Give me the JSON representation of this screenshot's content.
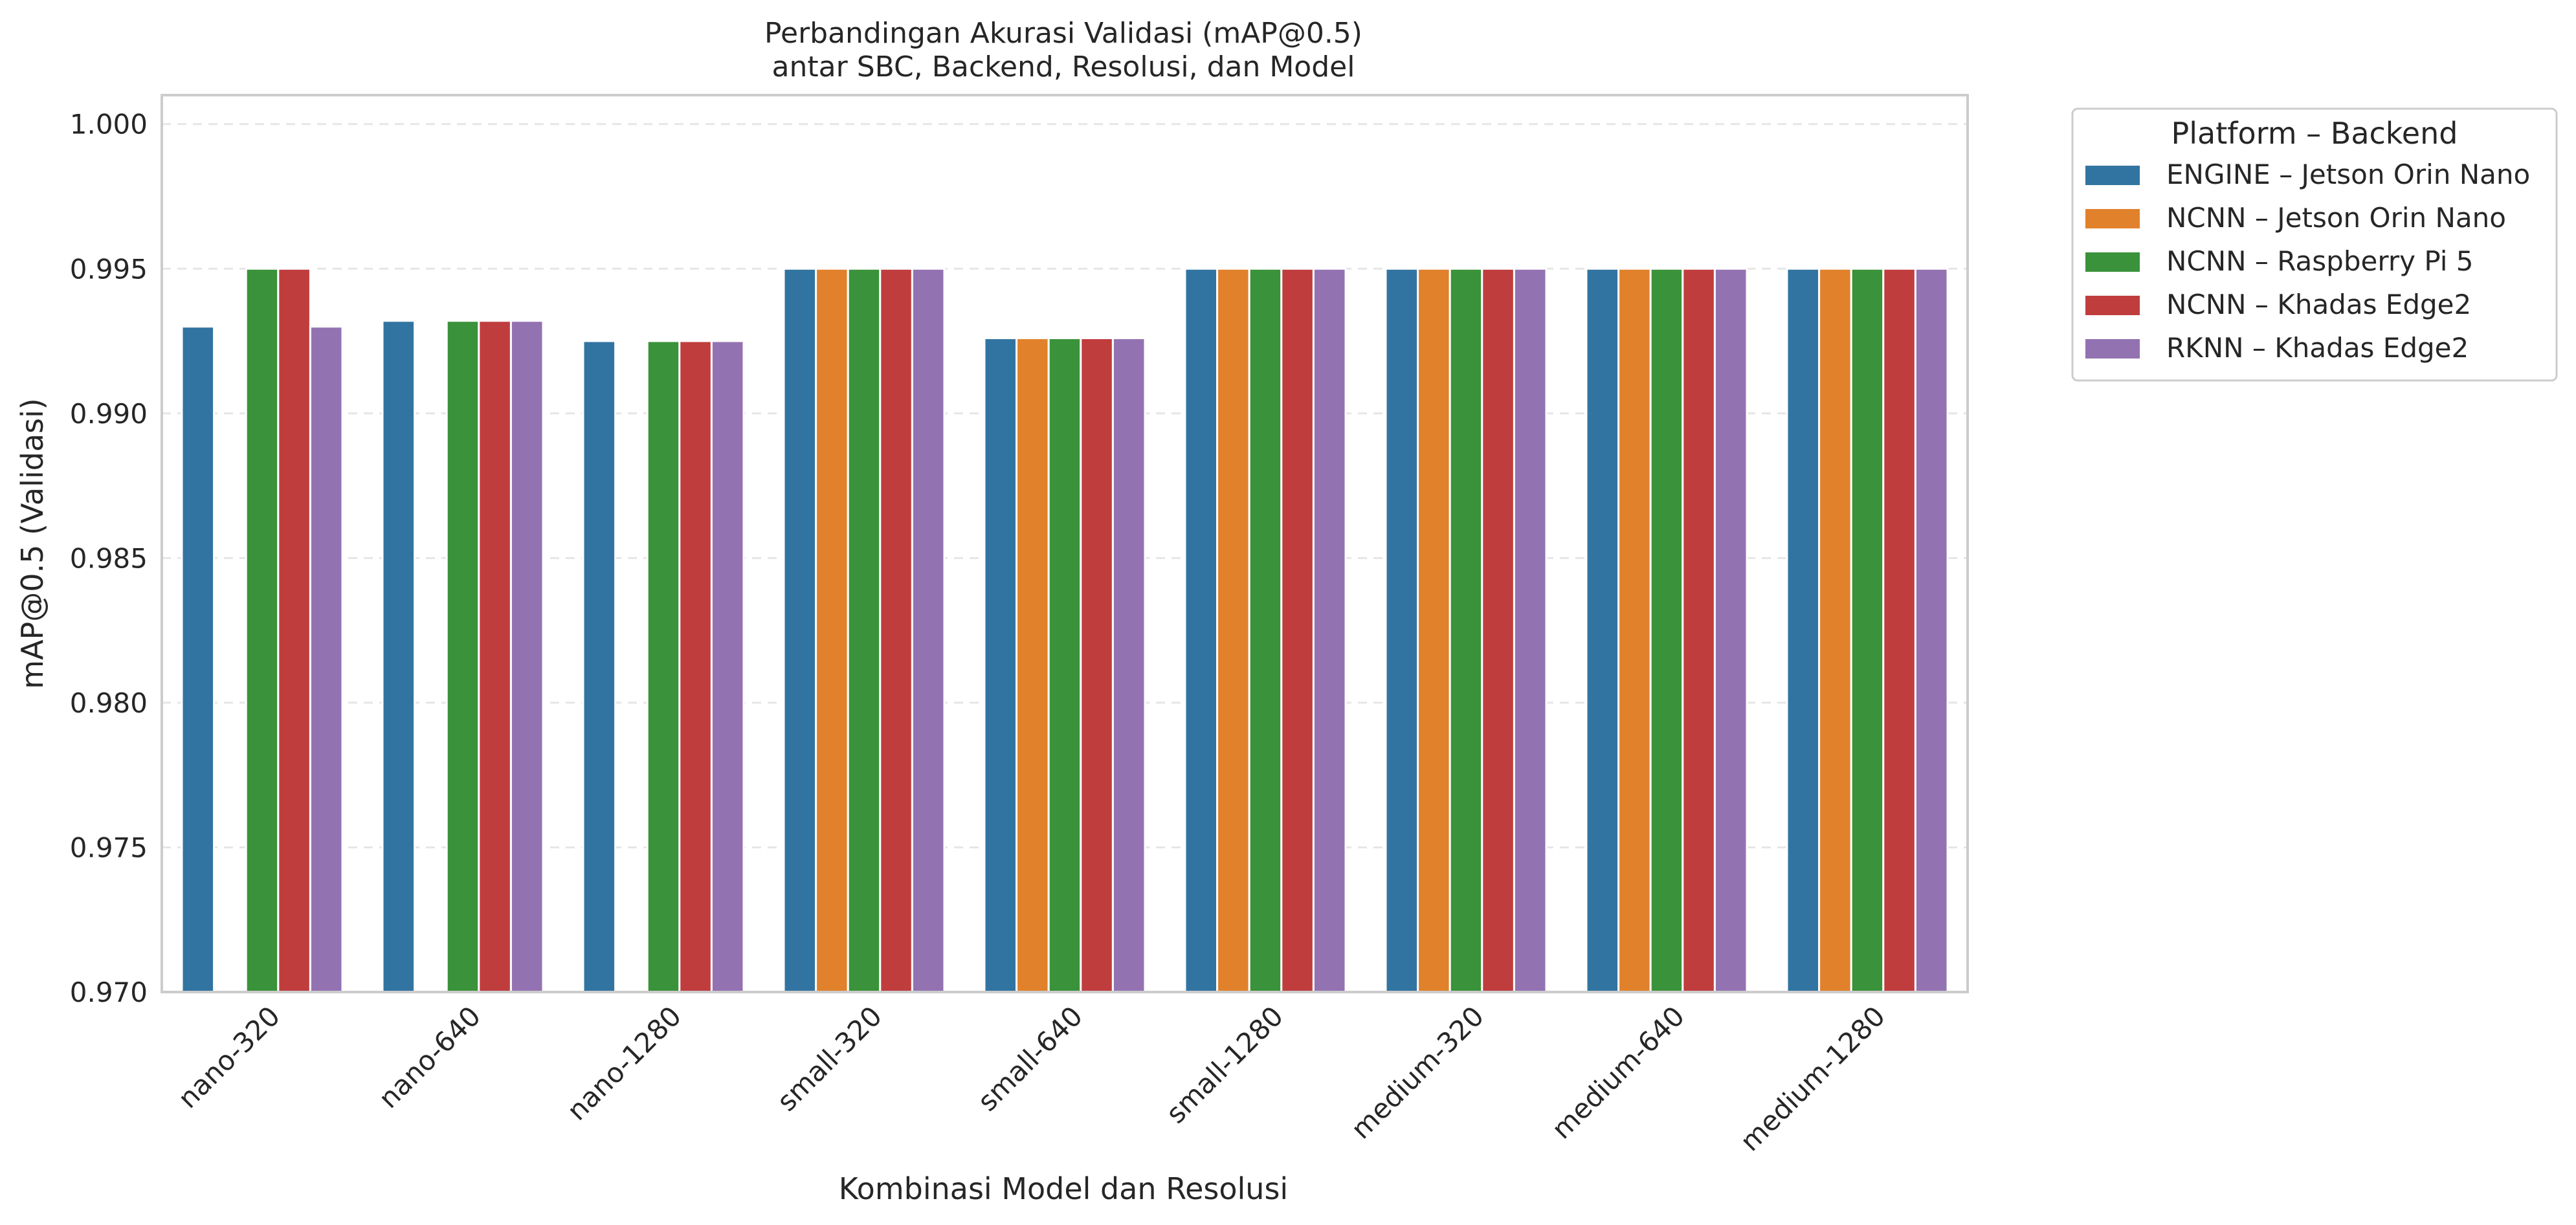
{
  "chart_data": {
    "type": "bar",
    "title_lines": [
      "Perbandingan Akurasi Validasi (mAP@0.5)",
      "antar SBC, Backend, Resolusi, dan Model"
    ],
    "xlabel": "Kombinasi Model dan Resolusi",
    "ylabel": "mAP@0.5 (Validasi)",
    "ylim": [
      0.97,
      1.001
    ],
    "yticks": [
      "0.970",
      "0.975",
      "0.980",
      "0.985",
      "0.990",
      "0.995",
      "1.000"
    ],
    "ytick_values": [
      0.97,
      0.975,
      0.98,
      0.985,
      0.99,
      0.995,
      1.0
    ],
    "grid": "horizontal dashed",
    "legend_title": "Platform – Backend",
    "legend_position": "outside top-right",
    "categories": [
      "nano-320",
      "nano-640",
      "nano-1280",
      "small-320",
      "small-640",
      "small-1280",
      "medium-320",
      "medium-640",
      "medium-1280"
    ],
    "series": [
      {
        "name": "ENGINE – Jetson Orin Nano",
        "color": "#3274a1",
        "values": [
          0.993,
          0.9932,
          0.9925,
          0.995,
          0.9926,
          0.995,
          0.995,
          0.995,
          0.995
        ]
      },
      {
        "name": "NCNN – Jetson Orin Nano",
        "color": "#e1812c",
        "values": [
          null,
          null,
          null,
          0.995,
          0.9926,
          0.995,
          0.995,
          0.995,
          0.995
        ]
      },
      {
        "name": "NCNN – Raspberry Pi 5",
        "color": "#3a923a",
        "values": [
          0.995,
          0.9932,
          0.9925,
          0.995,
          0.9926,
          0.995,
          0.995,
          0.995,
          0.995
        ]
      },
      {
        "name": "NCNN – Khadas Edge2",
        "color": "#c03d3e",
        "values": [
          0.995,
          0.9932,
          0.9925,
          0.995,
          0.9926,
          0.995,
          0.995,
          0.995,
          0.995
        ]
      },
      {
        "name": "RKNN – Khadas Edge2",
        "color": "#9372b2",
        "values": [
          0.993,
          0.9932,
          0.9925,
          0.995,
          0.9926,
          0.995,
          0.995,
          0.995,
          0.995
        ]
      }
    ]
  }
}
